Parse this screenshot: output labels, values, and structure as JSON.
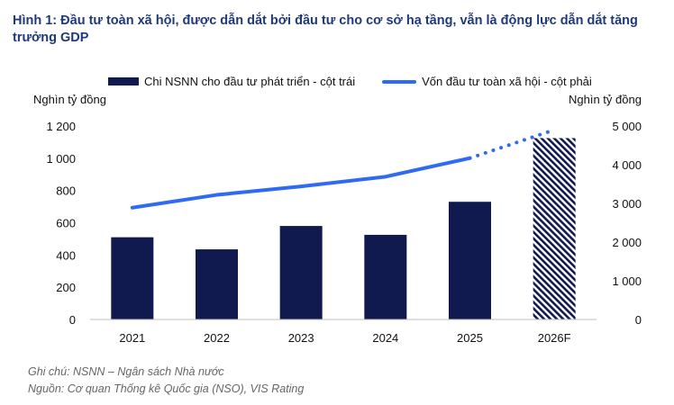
{
  "title": "Hình 1: Đầu tư toàn xã hội, được dẫn dắt bởi đầu tư cho cơ sở hạ tầng, vẫn là động lực dẫn dắt tăng trưởng GDP",
  "colors": {
    "bar": "#111a4e",
    "line": "#2e6bf2",
    "title": "#1f3a7a"
  },
  "legend": {
    "bar_label": "Chi NSNN cho đầu tư phát triển - cột trái",
    "line_label": "Vốn đầu tư toàn xã hội - cột phải"
  },
  "notes": {
    "note": "Ghi chú: NSNN – Ngân sách Nhà nước",
    "source": "Nguồn: Cơ quan Thống kê Quốc gia (NSO), VIS Rating"
  },
  "chart_data": {
    "type": "bar",
    "title": "",
    "categories": [
      "2021",
      "2022",
      "2023",
      "2024",
      "2025",
      "2026F"
    ],
    "ylabel": "Nghìn tỷ đồng",
    "y2label": "Nghìn tỷ đồng",
    "ylim": [
      0,
      1200
    ],
    "y2lim": [
      0,
      5000
    ],
    "yticks": [
      "0",
      "200",
      "400",
      "600",
      "800",
      "1 000",
      "1 200"
    ],
    "y2ticks": [
      "0",
      "1 000",
      "2 000",
      "3 000",
      "4 000",
      "5 000"
    ],
    "grid": false,
    "series": [
      {
        "name": "Chi NSNN cho đầu tư phát triển - cột trái",
        "type": "bar",
        "axis": "left",
        "values": [
          510,
          435,
          580,
          525,
          730,
          1125
        ],
        "forecast_from_index": 5
      },
      {
        "name": "Vốn đầu tư toàn xã hội - cột phải",
        "type": "line",
        "axis": "right",
        "values": [
          2890,
          3220,
          3440,
          3690,
          4170,
          4900
        ],
        "forecast_from_index": 5
      }
    ]
  }
}
